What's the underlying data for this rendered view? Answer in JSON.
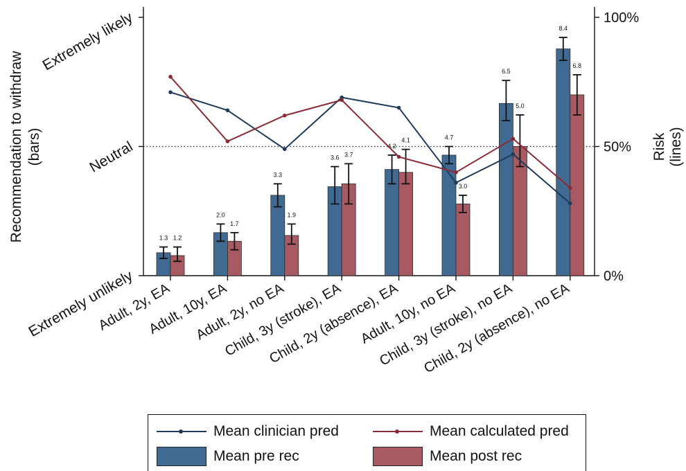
{
  "chart_data": {
    "type": "bar",
    "categories": [
      "Adult, 2y, EA",
      "Adult, 10y, EA",
      "Adult, 2y, no EA",
      "Child, 3y (stroke), EA",
      "Child, 2y (absence), EA",
      "Adult, 10y, no EA",
      "Child, 3y (stroke), no EA",
      "Child, 2y (absence), no EA"
    ],
    "left_axis": {
      "label": "Recommendation to withdraw\n(bars)",
      "ylim": [
        0.5,
        9.5
      ],
      "ticks": [
        {
          "value": 0.5,
          "label": "Extremely unlikely"
        },
        {
          "value": 5.0,
          "label": "Neutral"
        },
        {
          "value": 9.5,
          "label": "Extremely likely"
        }
      ]
    },
    "right_axis": {
      "label": "Risk\n(lines)",
      "ylim": [
        0,
        100
      ],
      "ticks": [
        {
          "value": 0,
          "label": "0%"
        },
        {
          "value": 50,
          "label": "50%"
        },
        {
          "value": 100,
          "label": "100%"
        }
      ]
    },
    "reference_line": {
      "axis": "right",
      "value": 50,
      "style": "dotted"
    },
    "bar_series": [
      {
        "name": "Mean pre rec",
        "color": "#416A92",
        "values": [
          1.3,
          2.0,
          3.3,
          3.6,
          4.2,
          4.7,
          6.5,
          8.4
        ],
        "labels": [
          "1.3",
          "2.0",
          "3.3",
          "3.6",
          "4.2",
          "4.7",
          "6.5",
          "8.4"
        ],
        "error_low": [
          1.1,
          1.7,
          2.9,
          3.0,
          3.7,
          4.4,
          5.9,
          8.0
        ],
        "error_high": [
          1.5,
          2.3,
          3.7,
          4.3,
          4.7,
          5.0,
          7.3,
          8.8
        ]
      },
      {
        "name": "Mean post rec",
        "color": "#A85A63",
        "values": [
          1.2,
          1.7,
          1.9,
          3.7,
          4.1,
          3.0,
          5.0,
          6.8
        ],
        "labels": [
          "1.2",
          "1.7",
          "1.9",
          "3.7",
          "4.1",
          "3.0",
          "5.0",
          "6.8"
        ],
        "error_low": [
          1.0,
          1.4,
          1.6,
          3.0,
          3.7,
          2.7,
          4.3,
          6.1
        ],
        "error_high": [
          1.5,
          2.0,
          2.3,
          4.4,
          4.9,
          3.3,
          6.1,
          7.5
        ]
      }
    ],
    "line_series": [
      {
        "name": "Mean clinician pred",
        "color": "#1E3A5F",
        "values": [
          71,
          64,
          49,
          69,
          65,
          36,
          47,
          28
        ]
      },
      {
        "name": "Mean calculated pred",
        "color": "#8B2A35",
        "values": [
          77,
          52,
          62,
          68,
          46,
          40,
          53,
          34
        ]
      }
    ],
    "legend": {
      "placement": "bottom",
      "columns": 2
    }
  }
}
